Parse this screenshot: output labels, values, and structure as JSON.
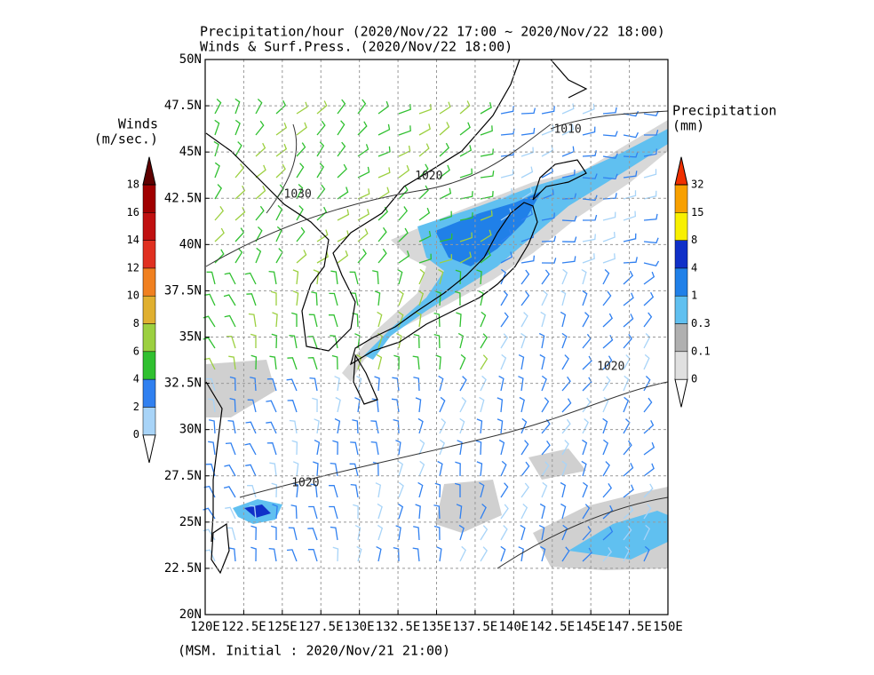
{
  "header": {
    "title_line1": "Precipitation/hour (2020/Nov/22 17:00 ~ 2020/Nov/22 18:00)",
    "title_line2": "Winds & Surf.Press. (2020/Nov/22 18:00)"
  },
  "map": {
    "xlim": [
      120,
      150
    ],
    "ylim": [
      20,
      50
    ],
    "xticks": [
      {
        "value": 120,
        "label": "120E"
      },
      {
        "value": 122.5,
        "label": "122.5E"
      },
      {
        "value": 125,
        "label": "125E"
      },
      {
        "value": 127.5,
        "label": "127.5E"
      },
      {
        "value": 130,
        "label": "130E"
      },
      {
        "value": 132.5,
        "label": "132.5E"
      },
      {
        "value": 135,
        "label": "135E"
      },
      {
        "value": 137.5,
        "label": "137.5E"
      },
      {
        "value": 140,
        "label": "140E"
      },
      {
        "value": 142.5,
        "label": "142.5E"
      },
      {
        "value": 145,
        "label": "145E"
      },
      {
        "value": 147.5,
        "label": "147.5E"
      },
      {
        "value": 150,
        "label": "150E"
      }
    ],
    "yticks": [
      {
        "value": 20,
        "label": "20N"
      },
      {
        "value": 22.5,
        "label": "22.5N"
      },
      {
        "value": 25,
        "label": "25N"
      },
      {
        "value": 27.5,
        "label": "27.5N"
      },
      {
        "value": 30,
        "label": "30N"
      },
      {
        "value": 32.5,
        "label": "32.5N"
      },
      {
        "value": 35,
        "label": "35N"
      },
      {
        "value": 37.5,
        "label": "37.5N"
      },
      {
        "value": 40,
        "label": "40N"
      },
      {
        "value": 42.5,
        "label": "42.5N"
      },
      {
        "value": 45,
        "label": "45N"
      },
      {
        "value": 47.5,
        "label": "47.5N"
      },
      {
        "value": 50,
        "label": "50N"
      }
    ],
    "grid": true,
    "isobar_labels": [
      {
        "text": "1010",
        "lon": 143.5,
        "lat": 46.2
      },
      {
        "text": "1020",
        "lon": 134.5,
        "lat": 43.7
      },
      {
        "text": "1030",
        "lon": 126.0,
        "lat": 42.7
      },
      {
        "text": "1020",
        "lon": 146.3,
        "lat": 33.4
      },
      {
        "text": "1020",
        "lon": 126.5,
        "lat": 27.1
      }
    ]
  },
  "winds_legend": {
    "title": "Winds",
    "unit": "(m/sec.)",
    "ticks": [
      0,
      2,
      4,
      6,
      8,
      10,
      12,
      14,
      16,
      18
    ],
    "colors": [
      "#ffffff",
      "#a8d4f8",
      "#3080f0",
      "#30c030",
      "#9cd040",
      "#e0b030",
      "#f08020",
      "#e03020",
      "#c01010",
      "#a00000",
      "#600000"
    ]
  },
  "precip_legend": {
    "title": "Precipitation",
    "unit": "(mm)",
    "ticks": [
      0,
      0.1,
      0.3,
      1,
      4,
      8,
      15,
      32
    ],
    "colors": [
      "#ffffff",
      "#e0e0e0",
      "#b0b0b0",
      "#60c0f0",
      "#2080e8",
      "#1030c8",
      "#f8f000",
      "#f8a000",
      "#f03000"
    ]
  },
  "footer": "(MSM. Initial : 2020/Nov/21 21:00)"
}
